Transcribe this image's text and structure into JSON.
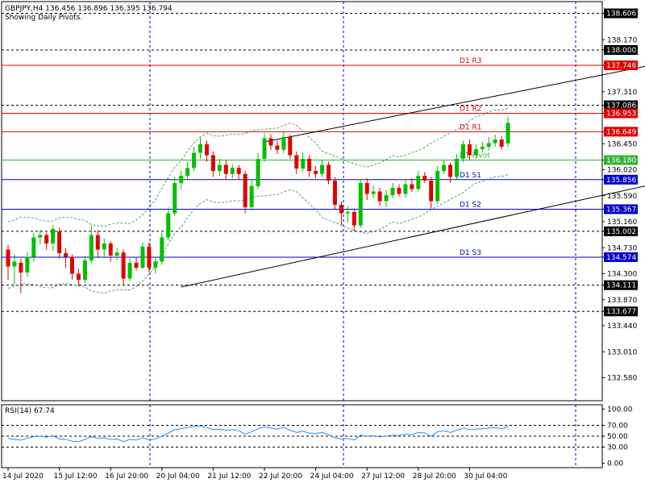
{
  "header": {
    "symbol_line": "GBPJPY,H4  136.456 136.896 136.395 136.794",
    "subtitle": "Showing Daily Pivots."
  },
  "rsi_panel": {
    "label": "RSI(14) 67.74"
  },
  "colors": {
    "bull": "#00c000",
    "bear": "#e00000",
    "resistance": "#e00000",
    "support": "#0000cc",
    "pivot": "#32b432",
    "bands": "#2e8b57",
    "rsi": "#1e90ff",
    "grid": "#0000a0"
  },
  "chart_data": [
    {
      "type": "candlestick",
      "title": "GBPJPY,H4  136.456 136.896 136.395 136.794",
      "subtitle": "Showing Daily Pivots.",
      "ylim": [
        132.2,
        138.8
      ],
      "y_ticks": [
        "138.606",
        "138.170",
        "138.000",
        "137.746",
        "137.310",
        "137.086",
        "136.953",
        "136.649",
        "136.450",
        "136.180",
        "136.020",
        "135.856",
        "135.590",
        "135.367",
        "135.160",
        "135.002",
        "134.730",
        "134.574",
        "134.300",
        "134.111",
        "133.870",
        "133.677",
        "133.440",
        "133.010",
        "132.580"
      ],
      "x_tick_labels": [
        "14 Jul 2020",
        "15 Jul 12:00",
        "16 Jul 20:00",
        "20 Jul 04:00",
        "21 Jul 12:00",
        "22 Jul 20:00",
        "24 Jul 04:00",
        "27 Jul 12:00",
        "28 Jul 20:00",
        "30 Jul 04:00"
      ],
      "x_tick_index": [
        0,
        8,
        16,
        24,
        32,
        40,
        48,
        56,
        64,
        72
      ],
      "price_labels": [
        {
          "value": 138.606,
          "text": "138.606",
          "kind": "level"
        },
        {
          "value": 138.0,
          "text": "138.000",
          "kind": "level"
        },
        {
          "value": 137.746,
          "text": "137.746",
          "kind": "resistance"
        },
        {
          "value": 137.086,
          "text": "137.086",
          "kind": "level"
        },
        {
          "value": 136.953,
          "text": "136.953",
          "kind": "resistance"
        },
        {
          "value": 136.649,
          "text": "136.649",
          "kind": "resistance"
        },
        {
          "value": 136.18,
          "text": "136.180",
          "kind": "pivot"
        },
        {
          "value": 135.856,
          "text": "135.856",
          "kind": "support"
        },
        {
          "value": 135.367,
          "text": "135.367",
          "kind": "support"
        },
        {
          "value": 135.002,
          "text": "135.002",
          "kind": "level"
        },
        {
          "value": 134.574,
          "text": "134.574",
          "kind": "support"
        },
        {
          "value": 134.111,
          "text": "134.111",
          "kind": "level"
        },
        {
          "value": 133.677,
          "text": "133.677",
          "kind": "level"
        }
      ],
      "pivots": [
        {
          "name": "D1 R3",
          "value": 137.746,
          "kind": "resistance"
        },
        {
          "name": "D1 R2",
          "value": 136.953,
          "kind": "resistance"
        },
        {
          "name": "D1 R1",
          "value": 136.649,
          "kind": "resistance"
        },
        {
          "name": "D1 Pivot",
          "value": 136.18,
          "kind": "pivot"
        },
        {
          "name": "D1 S1",
          "value": 135.856,
          "kind": "support"
        },
        {
          "name": "D1 S2",
          "value": 135.367,
          "kind": "support"
        },
        {
          "name": "D1 S3",
          "value": 134.574,
          "kind": "support"
        }
      ],
      "dotted_levels": [
        138.606,
        138.0,
        137.086,
        135.002,
        134.111,
        133.677
      ],
      "trend_lines": [
        {
          "from": [
            40,
            136.48
          ],
          "to": [
            118,
            138.12
          ]
        },
        {
          "from": [
            27,
            134.08
          ],
          "to": [
            118,
            136.18
          ]
        }
      ],
      "candles": [
        [
          134.7,
          134.42,
          134.78,
          134.2
        ],
        [
          134.42,
          134.5,
          134.62,
          134.12
        ],
        [
          134.48,
          134.32,
          134.55,
          133.98
        ],
        [
          134.32,
          134.58,
          134.66,
          134.25
        ],
        [
          134.58,
          134.9,
          134.98,
          134.5
        ],
        [
          134.9,
          134.94,
          135.02,
          134.78
        ],
        [
          134.94,
          134.8,
          134.98,
          134.7
        ],
        [
          134.8,
          135.04,
          135.1,
          134.68
        ],
        [
          135.0,
          134.64,
          135.06,
          134.55
        ],
        [
          134.64,
          134.58,
          134.72,
          134.4
        ],
        [
          134.58,
          134.3,
          134.62,
          134.2
        ],
        [
          134.3,
          134.2,
          134.38,
          134.1
        ],
        [
          134.2,
          134.52,
          134.6,
          134.15
        ],
        [
          134.52,
          134.94,
          135.1,
          134.48
        ],
        [
          134.94,
          134.7,
          135.02,
          134.58
        ],
        [
          134.7,
          134.8,
          134.88,
          134.56
        ],
        [
          134.8,
          134.6,
          134.84,
          134.5
        ],
        [
          134.6,
          134.65,
          134.72,
          134.52
        ],
        [
          134.65,
          134.22,
          134.7,
          134.12
        ],
        [
          134.22,
          134.48,
          134.55,
          134.18
        ],
        [
          134.48,
          134.4,
          134.58,
          134.35
        ],
        [
          134.4,
          134.75,
          134.82,
          134.38
        ],
        [
          134.75,
          134.4,
          134.82,
          134.32
        ],
        [
          134.4,
          134.5,
          134.56,
          134.3
        ],
        [
          134.5,
          134.9,
          134.98,
          134.45
        ],
        [
          134.9,
          135.3,
          135.4,
          134.85
        ],
        [
          135.3,
          135.8,
          135.9,
          135.25
        ],
        [
          135.8,
          135.92,
          136.0,
          135.7
        ],
        [
          135.92,
          136.05,
          136.15,
          135.85
        ],
        [
          136.05,
          136.3,
          136.4,
          136.0
        ],
        [
          136.3,
          136.44,
          136.55,
          136.2
        ],
        [
          136.44,
          136.26,
          136.5,
          136.15
        ],
        [
          136.26,
          136.0,
          136.32,
          135.9
        ],
        [
          136.0,
          136.1,
          136.2,
          135.92
        ],
        [
          136.1,
          135.95,
          136.18,
          135.85
        ],
        [
          135.95,
          136.05,
          136.12,
          135.88
        ],
        [
          136.05,
          135.95,
          136.1,
          135.85
        ],
        [
          135.95,
          135.4,
          136.0,
          135.3
        ],
        [
          135.4,
          135.75,
          135.85,
          135.35
        ],
        [
          135.75,
          136.2,
          136.3,
          135.7
        ],
        [
          136.2,
          136.54,
          136.62,
          136.15
        ],
        [
          136.54,
          136.42,
          136.6,
          136.35
        ],
        [
          136.42,
          136.35,
          136.5,
          136.28
        ],
        [
          136.35,
          136.56,
          136.64,
          136.3
        ],
        [
          136.56,
          136.26,
          136.6,
          136.2
        ],
        [
          136.26,
          136.04,
          136.32,
          135.95
        ],
        [
          136.04,
          136.2,
          136.3,
          135.98
        ],
        [
          136.2,
          136.0,
          136.26,
          135.9
        ],
        [
          136.0,
          135.95,
          136.08,
          135.88
        ],
        [
          135.95,
          136.1,
          136.18,
          135.9
        ],
        [
          136.1,
          135.84,
          136.15,
          135.78
        ],
        [
          135.84,
          135.44,
          135.9,
          135.36
        ],
        [
          135.44,
          135.3,
          135.5,
          135.1
        ],
        [
          135.3,
          135.32,
          135.42,
          135.15
        ],
        [
          135.32,
          135.1,
          135.38,
          135.0
        ],
        [
          135.1,
          135.8,
          135.86,
          135.06
        ],
        [
          135.8,
          135.62,
          135.88,
          135.52
        ],
        [
          135.62,
          135.66,
          135.75,
          135.55
        ],
        [
          135.66,
          135.5,
          135.72,
          135.42
        ],
        [
          135.5,
          135.6,
          135.68,
          135.4
        ],
        [
          135.6,
          135.72,
          135.8,
          135.55
        ],
        [
          135.72,
          135.62,
          135.78,
          135.58
        ],
        [
          135.62,
          135.78,
          135.85,
          135.56
        ],
        [
          135.78,
          135.7,
          135.88,
          135.65
        ],
        [
          135.7,
          135.92,
          136.0,
          135.66
        ],
        [
          135.92,
          135.84,
          135.98,
          135.8
        ],
        [
          135.84,
          135.5,
          135.9,
          135.38
        ],
        [
          135.5,
          136.0,
          136.08,
          135.46
        ],
        [
          136.0,
          136.1,
          136.18,
          135.95
        ],
        [
          136.1,
          135.9,
          136.14,
          135.8
        ],
        [
          135.9,
          136.2,
          136.28,
          135.86
        ],
        [
          136.2,
          136.44,
          136.5,
          136.15
        ],
        [
          136.44,
          136.26,
          136.52,
          136.18
        ],
        [
          136.26,
          136.36,
          136.44,
          136.2
        ],
        [
          136.36,
          136.4,
          136.48,
          136.3
        ],
        [
          136.4,
          136.46,
          136.56,
          136.34
        ],
        [
          136.46,
          136.52,
          136.6,
          136.4
        ],
        [
          136.52,
          136.4,
          136.58,
          136.35
        ],
        [
          136.456,
          136.794,
          136.896,
          136.395
        ]
      ],
      "band_upper": [
        134.8,
        135.05,
        135.4,
        135.42
      ],
      "band_lower": [
        133.7,
        133.95,
        134.35,
        134.55
      ]
    },
    {
      "type": "line",
      "title": "RSI(14) 67.74",
      "ylim": [
        -8,
        108
      ],
      "y_ticks": [
        "100.00",
        "70.00",
        "50.00",
        "30.00",
        "0.00"
      ],
      "levels": [
        70,
        50,
        30
      ],
      "values": [
        46,
        44,
        43,
        46,
        49,
        50,
        48,
        51,
        45,
        44,
        41,
        40,
        44,
        49,
        46,
        47,
        44,
        45,
        40,
        44,
        43,
        47,
        43,
        45,
        50,
        56,
        62,
        64,
        66,
        68,
        69,
        66,
        62,
        63,
        61,
        62,
        60,
        54,
        58,
        64,
        67,
        65,
        63,
        66,
        61,
        57,
        59,
        56,
        55,
        57,
        53,
        47,
        45,
        46,
        43,
        52,
        50,
        51,
        49,
        50,
        52,
        51,
        54,
        53,
        57,
        56,
        50,
        58,
        60,
        57,
        61,
        65,
        62,
        63,
        64,
        65,
        66,
        64,
        67.74
      ]
    }
  ]
}
